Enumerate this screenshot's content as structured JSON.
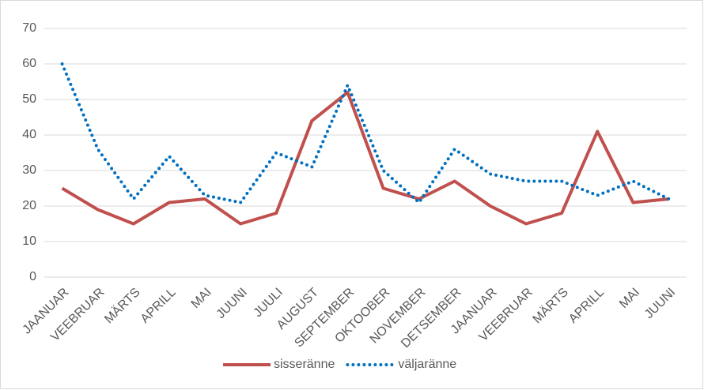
{
  "chart_data": {
    "type": "line",
    "categories": [
      "JAANUAR",
      "VEEBRUAR",
      "MÄRTS",
      "APRILL",
      "MAI",
      "JUUNI",
      "JUULI",
      "AUGUST",
      "SEPTEMBER",
      "OKTOOBER",
      "NOVEMBER",
      "DETSEMBER",
      "JAANUAR",
      "VEEBRUAR",
      "MÄRTS",
      "APRILL",
      "MAI",
      "JUUNI"
    ],
    "series": [
      {
        "name": "sisseränne",
        "color": "#c0504d",
        "style": "solid",
        "values": [
          25,
          19,
          15,
          21,
          22,
          15,
          18,
          44,
          52,
          25,
          22,
          27,
          20,
          15,
          18,
          41,
          21,
          22
        ]
      },
      {
        "name": "väljaränne",
        "color": "#0070c0",
        "style": "dotted",
        "values": [
          60,
          36,
          22,
          34,
          23,
          21,
          35,
          31,
          54,
          30,
          21,
          36,
          29,
          27,
          27,
          23,
          27,
          22
        ]
      }
    ],
    "ylim": [
      0,
      70
    ],
    "yticks": [
      0,
      10,
      20,
      30,
      40,
      50,
      60,
      70
    ],
    "grid": true,
    "legend": "bottom"
  }
}
